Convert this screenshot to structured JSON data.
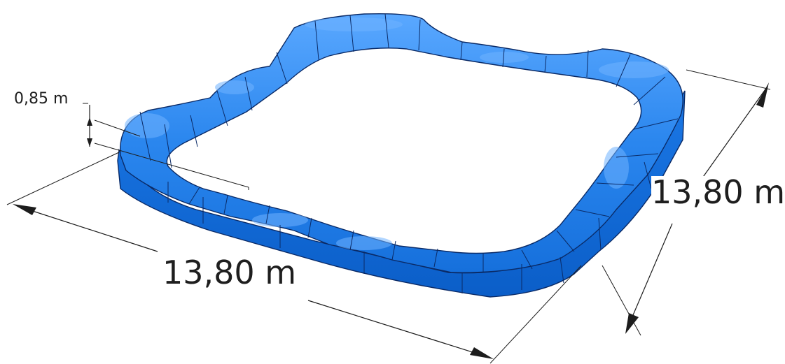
{
  "diagram": {
    "object": "pump-track-ring",
    "colors": {
      "track_top": "#2a86ee",
      "track_side": "#0f66d4",
      "track_highlight": "#6fb2ff",
      "edge": "#0a2a66",
      "dimension_lines": "#1c1c1c",
      "label_text": "#1e1e1e"
    },
    "dimensions": {
      "width_label": "13,80 m",
      "depth_label": "13,80 m",
      "height_label": "0,85 m"
    }
  }
}
